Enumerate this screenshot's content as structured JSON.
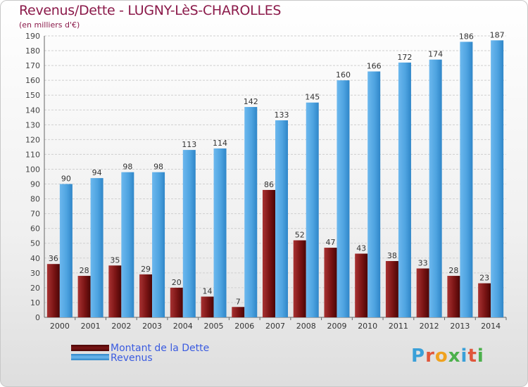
{
  "chart_data": {
    "type": "bar",
    "title": "Revenus/Dette - LUGNY-LèS-CHAROLLES",
    "subtitle": "(en milliers d'€)",
    "categories": [
      "2000",
      "2001",
      "2002",
      "2003",
      "2004",
      "2005",
      "2006",
      "2007",
      "2008",
      "2009",
      "2010",
      "2011",
      "2012",
      "2013",
      "2014"
    ],
    "series": [
      {
        "name": "Montant de la Dette",
        "color": "#7a1616",
        "values": [
          36,
          28,
          35,
          29,
          20,
          14,
          7,
          86,
          52,
          47,
          43,
          38,
          33,
          28,
          23
        ]
      },
      {
        "name": "Revenus",
        "color": "#4ea3e0",
        "values": [
          90,
          94,
          98,
          98,
          113,
          114,
          142,
          133,
          145,
          160,
          166,
          172,
          174,
          186,
          187
        ]
      }
    ],
    "ylim": [
      0,
      190
    ],
    "yticks": [
      0,
      10,
      20,
      30,
      40,
      50,
      60,
      70,
      80,
      90,
      100,
      110,
      120,
      130,
      140,
      150,
      160,
      170,
      180,
      190
    ],
    "grid": true,
    "legend": "bottom-left"
  },
  "legend": {
    "dette_label": "Montant de la Dette",
    "revenus_label": "Revenus"
  },
  "brand": {
    "name": "Proxiti"
  }
}
